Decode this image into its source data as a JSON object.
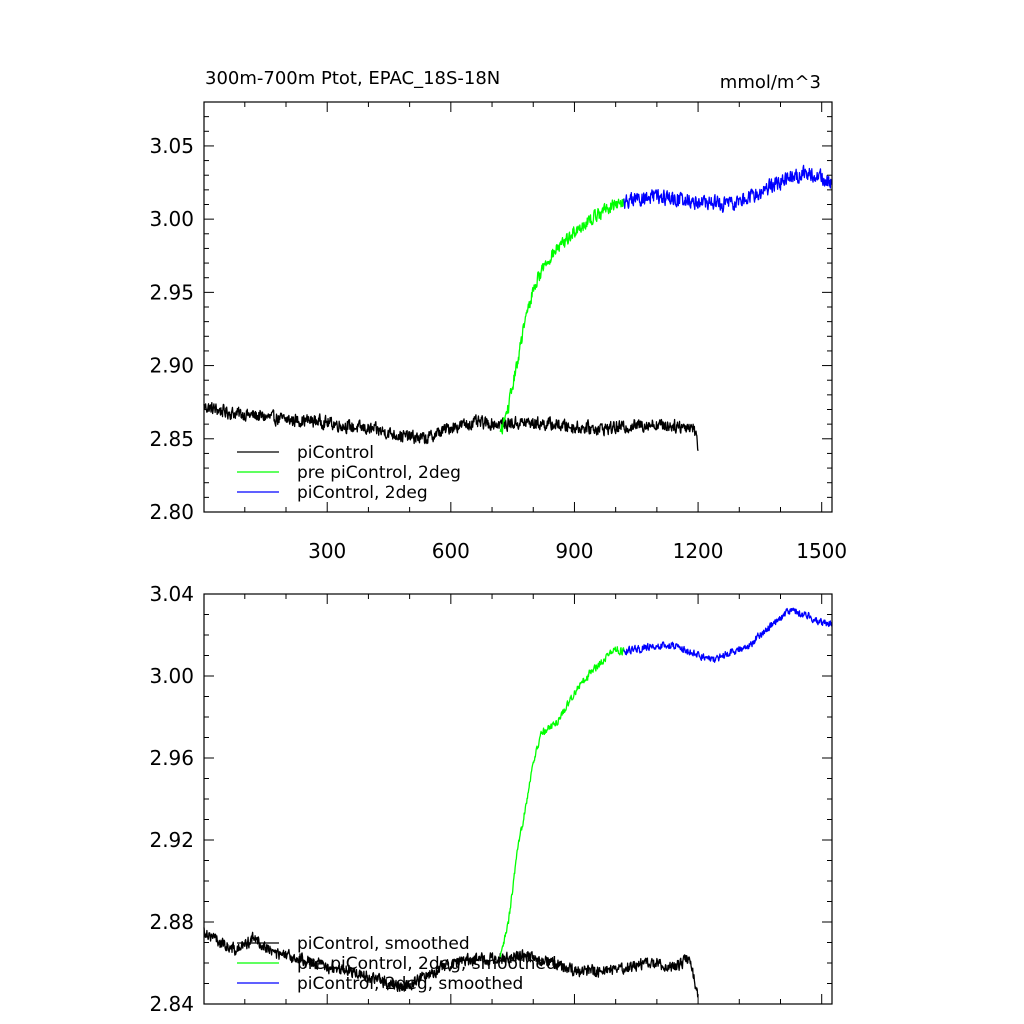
{
  "chart_data": [
    {
      "type": "line",
      "title": "300m-700m Ptot, EPAC_18S-18N",
      "units": "mmol/m^3",
      "xlim": [
        1,
        1525
      ],
      "ylim": [
        2.8,
        3.08
      ],
      "xticks": [
        300,
        600,
        900,
        1200,
        1500
      ],
      "yticks": [
        2.8,
        2.85,
        2.9,
        2.95,
        3.0,
        3.05
      ],
      "xticklabels": [
        "300",
        "600",
        "900",
        "1200",
        "1500"
      ],
      "yticklabels": [
        "2.80",
        "2.85",
        "2.90",
        "2.95",
        "3.00",
        "3.05"
      ],
      "legend_position": "bottom-left",
      "grid": false,
      "series": [
        {
          "name": "piControl",
          "color": "#000000",
          "x_start": 1,
          "x_end": 1200,
          "anchors": [
            [
              1,
              2.872
            ],
            [
              60,
              2.868
            ],
            [
              120,
              2.866
            ],
            [
              200,
              2.863
            ],
            [
              280,
              2.862
            ],
            [
              360,
              2.858
            ],
            [
              420,
              2.856
            ],
            [
              480,
              2.852
            ],
            [
              540,
              2.85
            ],
            [
              600,
              2.858
            ],
            [
              660,
              2.861
            ],
            [
              720,
              2.86
            ],
            [
              780,
              2.861
            ],
            [
              840,
              2.86
            ],
            [
              900,
              2.858
            ],
            [
              960,
              2.857
            ],
            [
              1020,
              2.858
            ],
            [
              1080,
              2.86
            ],
            [
              1140,
              2.859
            ],
            [
              1190,
              2.858
            ],
            [
              1200,
              2.845
            ]
          ],
          "noise": 0.006
        },
        {
          "name": "pre piControl, 2deg",
          "color": "#00ff00",
          "x_start": 720,
          "x_end": 1020,
          "anchors": [
            [
              720,
              2.853
            ],
            [
              740,
              2.872
            ],
            [
              760,
              2.9
            ],
            [
              780,
              2.93
            ],
            [
              800,
              2.952
            ],
            [
              820,
              2.965
            ],
            [
              840,
              2.974
            ],
            [
              860,
              2.98
            ],
            [
              880,
              2.985
            ],
            [
              900,
              2.992
            ],
            [
              940,
              3.0
            ],
            [
              980,
              3.008
            ],
            [
              1020,
              3.012
            ]
          ],
          "noise": 0.006
        },
        {
          "name": "piControl, 2deg",
          "color": "#0000ff",
          "x_start": 1020,
          "x_end": 1525,
          "anchors": [
            [
              1020,
              3.012
            ],
            [
              1080,
              3.015
            ],
            [
              1140,
              3.014
            ],
            [
              1200,
              3.012
            ],
            [
              1260,
              3.01
            ],
            [
              1300,
              3.012
            ],
            [
              1360,
              3.02
            ],
            [
              1420,
              3.028
            ],
            [
              1460,
              3.032
            ],
            [
              1500,
              3.028
            ],
            [
              1525,
              3.024
            ]
          ],
          "noise": 0.007
        }
      ]
    },
    {
      "type": "line",
      "xlim": [
        1,
        1525
      ],
      "ylim": [
        2.84,
        3.04
      ],
      "xticks": [
        300,
        600,
        900,
        1200,
        1500
      ],
      "yticks": [
        2.84,
        2.88,
        2.92,
        2.96,
        3.0,
        3.04
      ],
      "yticklabels": [
        "2.84",
        "2.88",
        "2.92",
        "2.96",
        "3.00",
        "3.04"
      ],
      "legend_position": "bottom-left",
      "grid": false,
      "series": [
        {
          "name": "piControl, smoothed",
          "color": "#000000",
          "x_start": 1,
          "x_end": 1200,
          "anchors": [
            [
              1,
              2.876
            ],
            [
              40,
              2.87
            ],
            [
              80,
              2.866
            ],
            [
              120,
              2.872
            ],
            [
              180,
              2.864
            ],
            [
              240,
              2.862
            ],
            [
              300,
              2.858
            ],
            [
              360,
              2.856
            ],
            [
              420,
              2.852
            ],
            [
              480,
              2.848
            ],
            [
              540,
              2.854
            ],
            [
              600,
              2.86
            ],
            [
              660,
              2.862
            ],
            [
              720,
              2.862
            ],
            [
              780,
              2.864
            ],
            [
              840,
              2.86
            ],
            [
              900,
              2.856
            ],
            [
              960,
              2.856
            ],
            [
              1020,
              2.858
            ],
            [
              1080,
              2.86
            ],
            [
              1140,
              2.858
            ],
            [
              1180,
              2.862
            ],
            [
              1195,
              2.848
            ],
            [
              1200,
              2.845
            ]
          ],
          "noise": 0.004
        },
        {
          "name": "pre piControl, 2deg, smoothed",
          "color": "#00ff00",
          "x_start": 720,
          "x_end": 1020,
          "anchors": [
            [
              720,
              2.862
            ],
            [
              740,
              2.88
            ],
            [
              760,
              2.912
            ],
            [
              780,
              2.935
            ],
            [
              800,
              2.958
            ],
            [
              820,
              2.972
            ],
            [
              840,
              2.975
            ],
            [
              860,
              2.978
            ],
            [
              880,
              2.985
            ],
            [
              900,
              2.992
            ],
            [
              940,
              3.002
            ],
            [
              980,
              3.01
            ],
            [
              1000,
              3.013
            ],
            [
              1020,
              3.012
            ]
          ],
          "noise": 0.0025
        },
        {
          "name": "piControl, 2deg, smoothed",
          "color": "#0000ff",
          "x_start": 1020,
          "x_end": 1525,
          "anchors": [
            [
              1020,
              3.012
            ],
            [
              1080,
              3.014
            ],
            [
              1140,
              3.015
            ],
            [
              1200,
              3.01
            ],
            [
              1240,
              3.008
            ],
            [
              1280,
              3.012
            ],
            [
              1320,
              3.014
            ],
            [
              1360,
              3.022
            ],
            [
              1400,
              3.028
            ],
            [
              1420,
              3.032
            ],
            [
              1460,
              3.03
            ],
            [
              1500,
              3.026
            ],
            [
              1525,
              3.025
            ]
          ],
          "noise": 0.0025
        }
      ]
    }
  ]
}
